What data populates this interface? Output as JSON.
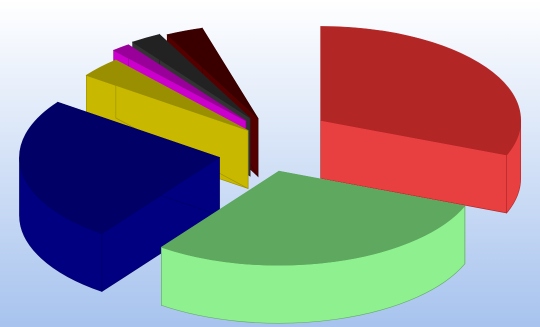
{
  "chart_data": {
    "type": "pie",
    "style": "3d-exploded",
    "title": "",
    "legend": "none",
    "background": {
      "top": "#ffffff",
      "bottom": "#a7c3ee"
    },
    "slices": [
      {
        "value": 31,
        "color": "#b32626",
        "side_color": "#e84040"
      },
      {
        "value": 29,
        "color": "#5fa85f",
        "side_color": "#8ef08e"
      },
      {
        "value": 25,
        "color": "#000066",
        "side_color": "#000080"
      },
      {
        "value": 3.5,
        "color": "#9a8f00",
        "side_color": "#c8b800"
      },
      {
        "value": 1.5,
        "color": "#990099",
        "side_color": "#cc00cc"
      },
      {
        "value": 2.5,
        "color": "#222222",
        "side_color": "#333333"
      },
      {
        "value": 3,
        "color": "#3a0000",
        "side_color": "#550000"
      },
      {
        "value": 4.5,
        "color": "#ffffff",
        "side_color": "#ffffff"
      }
    ]
  }
}
